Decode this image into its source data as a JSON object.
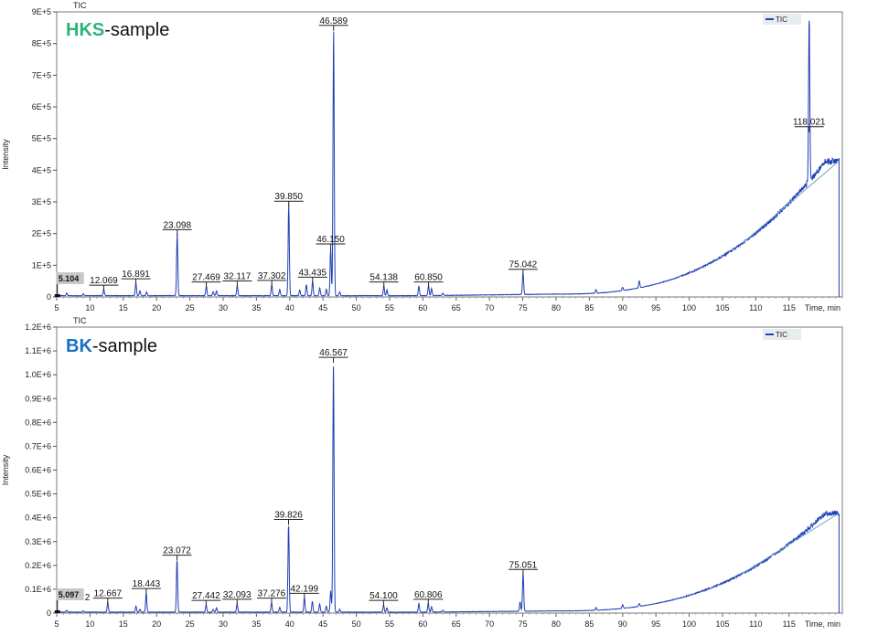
{
  "chart_data": [
    {
      "type": "line",
      "header": "TIC",
      "sample_prefix": "HKS",
      "sample_suffix": "-sample",
      "prefix_color": "#2db37a",
      "trace_color": "#1f3fb5",
      "ylabel": "Intensity",
      "xlabel": "Time, min",
      "xlim": [
        5,
        123
      ],
      "ylim": [
        0,
        900000
      ],
      "x_ticks": [
        5,
        10,
        15,
        20,
        25,
        30,
        35,
        40,
        45,
        50,
        55,
        60,
        65,
        70,
        75,
        80,
        85,
        90,
        95,
        100,
        105,
        110,
        115
      ],
      "y_ticks": [
        {
          "v": 0,
          "label": "0"
        },
        {
          "v": 100000,
          "label": "1E+5"
        },
        {
          "v": 200000,
          "label": "2E+5"
        },
        {
          "v": 300000,
          "label": "3E+5"
        },
        {
          "v": 400000,
          "label": "4E+5"
        },
        {
          "v": 500000,
          "label": "5E+5"
        },
        {
          "v": 600000,
          "label": "6E+5"
        },
        {
          "v": 700000,
          "label": "7E+5"
        },
        {
          "v": 800000,
          "label": "8E+5"
        },
        {
          "v": 900000,
          "label": "9E+5"
        }
      ],
      "legend": "TIC",
      "highlight_label": "5.104",
      "peaks": [
        {
          "t": 12.069,
          "h": 20000,
          "label": "12.069"
        },
        {
          "t": 16.891,
          "h": 40000,
          "label": "16.891"
        },
        {
          "t": 23.098,
          "h": 195000,
          "label": "23.098"
        },
        {
          "t": 27.469,
          "h": 30000,
          "label": "27.469"
        },
        {
          "t": 32.117,
          "h": 33000,
          "label": "32.117"
        },
        {
          "t": 37.302,
          "h": 35000,
          "label": "37.302"
        },
        {
          "t": 39.85,
          "h": 285000,
          "label": "39.850"
        },
        {
          "t": 43.435,
          "h": 45000,
          "label": "43.435"
        },
        {
          "t": 46.15,
          "h": 150000,
          "label": "46.150"
        },
        {
          "t": 46.589,
          "h": 840000,
          "label": "46.589"
        },
        {
          "t": 54.138,
          "h": 30000,
          "label": "54.138"
        },
        {
          "t": 60.85,
          "h": 30000,
          "label": "60.850"
        },
        {
          "t": 75.042,
          "h": 70000,
          "label": "75.042"
        },
        {
          "t": 118.021,
          "h": 520000,
          "label": "118.021"
        }
      ],
      "minor_peaks": [
        {
          "t": 6.5,
          "h": 8000
        },
        {
          "t": 9.0,
          "h": 6000
        },
        {
          "t": 17.5,
          "h": 15000
        },
        {
          "t": 18.5,
          "h": 12000
        },
        {
          "t": 28.5,
          "h": 12000
        },
        {
          "t": 29.0,
          "h": 15000
        },
        {
          "t": 38.5,
          "h": 20000
        },
        {
          "t": 41.5,
          "h": 18000
        },
        {
          "t": 42.5,
          "h": 35000
        },
        {
          "t": 44.5,
          "h": 25000
        },
        {
          "t": 45.5,
          "h": 20000
        },
        {
          "t": 47.5,
          "h": 12000
        },
        {
          "t": 54.6,
          "h": 18000
        },
        {
          "t": 59.4,
          "h": 30000
        },
        {
          "t": 61.3,
          "h": 22000
        },
        {
          "t": 63.0,
          "h": 8000
        },
        {
          "t": 86.0,
          "h": 12000
        },
        {
          "t": 90.0,
          "h": 10000
        },
        {
          "t": 92.5,
          "h": 22000
        }
      ],
      "drift": {
        "start": 80,
        "end": 122.5,
        "top": 420000
      }
    },
    {
      "type": "line",
      "header": "TIC",
      "sample_prefix": "BK",
      "sample_suffix": "-sample",
      "prefix_color": "#1a6fc4",
      "trace_color": "#1f3fb5",
      "ylabel": "Intensity",
      "xlabel": "Time, min",
      "xlim": [
        5,
        123
      ],
      "ylim": [
        0,
        1200000
      ],
      "x_ticks": [
        5,
        10,
        15,
        20,
        25,
        30,
        35,
        40,
        45,
        50,
        55,
        60,
        65,
        70,
        75,
        80,
        85,
        90,
        95,
        100,
        105,
        110,
        115
      ],
      "y_ticks": [
        {
          "v": 0,
          "label": "0"
        },
        {
          "v": 100000,
          "label": "0.1E+6"
        },
        {
          "v": 200000,
          "label": "0.2E+6"
        },
        {
          "v": 300000,
          "label": "0.3E+6"
        },
        {
          "v": 400000,
          "label": "0.4E+6"
        },
        {
          "v": 500000,
          "label": "0.5E+6"
        },
        {
          "v": 600000,
          "label": "0.6E+6"
        },
        {
          "v": 700000,
          "label": "0.7E+6"
        },
        {
          "v": 800000,
          "label": "0.8E+6"
        },
        {
          "v": 900000,
          "label": "0.9E+6"
        },
        {
          "v": 1000000,
          "label": "1.0E+6"
        },
        {
          "v": 1100000,
          "label": "1.1E+6"
        },
        {
          "v": 1200000,
          "label": "1.2E+6"
        }
      ],
      "legend": "TIC",
      "highlight_label": "5.097",
      "highlight_suffix": "2",
      "peaks": [
        {
          "t": 12.667,
          "h": 40000,
          "label": "12.667"
        },
        {
          "t": 18.443,
          "h": 80000,
          "label": "18.443"
        },
        {
          "t": 23.072,
          "h": 220000,
          "label": "23.072"
        },
        {
          "t": 27.442,
          "h": 30000,
          "label": "27.442"
        },
        {
          "t": 32.093,
          "h": 35000,
          "label": "32.093"
        },
        {
          "t": 37.276,
          "h": 40000,
          "label": "37.276"
        },
        {
          "t": 39.826,
          "h": 370000,
          "label": "39.826"
        },
        {
          "t": 42.199,
          "h": 60000,
          "label": "42.199"
        },
        {
          "t": 46.567,
          "h": 1050000,
          "label": "46.567"
        },
        {
          "t": 54.1,
          "h": 30000,
          "label": "54.100"
        },
        {
          "t": 60.806,
          "h": 35000,
          "label": "60.806"
        },
        {
          "t": 75.051,
          "h": 160000,
          "label": "75.051"
        }
      ],
      "minor_peaks": [
        {
          "t": 6.5,
          "h": 8000
        },
        {
          "t": 9.0,
          "h": 6000
        },
        {
          "t": 16.9,
          "h": 25000
        },
        {
          "t": 17.5,
          "h": 12000
        },
        {
          "t": 28.5,
          "h": 12000
        },
        {
          "t": 29.0,
          "h": 18000
        },
        {
          "t": 38.5,
          "h": 20000
        },
        {
          "t": 43.4,
          "h": 45000
        },
        {
          "t": 44.5,
          "h": 35000
        },
        {
          "t": 45.5,
          "h": 25000
        },
        {
          "t": 46.15,
          "h": 90000
        },
        {
          "t": 47.5,
          "h": 12000
        },
        {
          "t": 54.6,
          "h": 18000
        },
        {
          "t": 59.4,
          "h": 35000
        },
        {
          "t": 61.3,
          "h": 22000
        },
        {
          "t": 63.0,
          "h": 8000
        },
        {
          "t": 74.6,
          "h": 40000
        },
        {
          "t": 86.0,
          "h": 12000
        },
        {
          "t": 90.0,
          "h": 15000
        },
        {
          "t": 92.5,
          "h": 12000
        }
      ],
      "drift": {
        "start": 80,
        "end": 122.5,
        "top": 410000
      }
    }
  ]
}
